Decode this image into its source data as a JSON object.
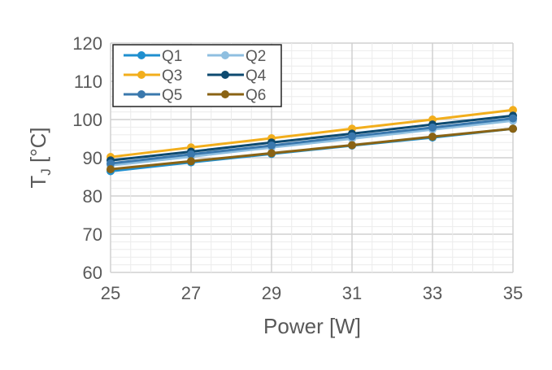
{
  "chart_data": {
    "type": "line",
    "xlabel": "Power [W]",
    "ylabel": "T",
    "ylabel_sub": "J",
    "ylabel_unit": " [°C]",
    "xlim": [
      25,
      35
    ],
    "ylim": [
      60,
      120
    ],
    "xticks": [
      25,
      27,
      29,
      31,
      33,
      35
    ],
    "yticks": [
      60,
      70,
      80,
      90,
      100,
      110,
      120
    ],
    "grid": true,
    "legend": "top-left",
    "x": [
      25,
      27,
      29,
      31,
      33,
      35
    ],
    "series": [
      {
        "name": "Q1",
        "color": "#1f8fcf",
        "values": [
          86.5,
          88.8,
          91.0,
          93.2,
          95.3,
          97.6
        ]
      },
      {
        "name": "Q2",
        "color": "#8fbfe0",
        "values": [
          88.0,
          90.3,
          92.7,
          95.0,
          97.4,
          99.7
        ]
      },
      {
        "name": "Q3",
        "color": "#f2ae1c",
        "values": [
          90.2,
          92.7,
          95.1,
          97.6,
          100.0,
          102.5
        ]
      },
      {
        "name": "Q4",
        "color": "#0d4a70",
        "values": [
          89.3,
          91.6,
          94.0,
          96.3,
          98.7,
          101.0
        ]
      },
      {
        "name": "Q5",
        "color": "#3a78ad",
        "values": [
          88.5,
          90.9,
          93.2,
          95.6,
          97.9,
          100.3
        ]
      },
      {
        "name": "Q6",
        "color": "#8a6314",
        "values": [
          87.0,
          89.1,
          91.2,
          93.3,
          95.5,
          97.6
        ]
      }
    ]
  }
}
